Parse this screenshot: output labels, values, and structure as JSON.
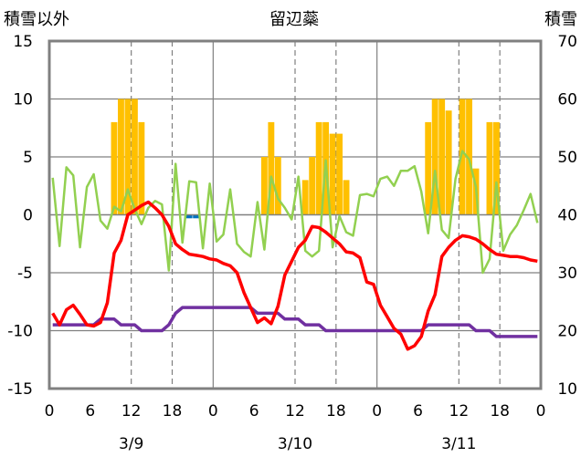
{
  "header": {
    "left_label": "積雪以外",
    "title": "留辺蘂",
    "right_label": "積雪"
  },
  "chart_data": {
    "type": "combo",
    "title": "留辺蘂",
    "left_axis": {
      "label": "積雪以外",
      "min": -15,
      "max": 15,
      "ticks": [
        15,
        10,
        5,
        0,
        -5,
        -10,
        -15
      ]
    },
    "right_axis": {
      "label": "積雪",
      "min": 10,
      "max": 70,
      "ticks": [
        70,
        60,
        50,
        40,
        30,
        20,
        10
      ]
    },
    "x_axis": {
      "min": 0,
      "max": 72,
      "hour_ticks": [
        0,
        6,
        12,
        18,
        0,
        6,
        12,
        18,
        0,
        6,
        12,
        18,
        0
      ],
      "dates": [
        "3/9",
        "3/10",
        "3/11"
      ],
      "date_positions": [
        12,
        36,
        60
      ],
      "day_boundaries": [
        24,
        48
      ],
      "dashed_hours": [
        12,
        18,
        36,
        42,
        60,
        66
      ]
    },
    "colors": {
      "precip": "#FFC000",
      "negative_bar": "#0070C0",
      "temperature": "#FF0000",
      "snow_depth": "#7030A0",
      "wind": "#92D050",
      "frame": "#808080"
    },
    "series": [
      {
        "axis": "left",
        "type": "bar",
        "values": [
          0,
          0,
          0,
          0,
          0,
          0,
          0,
          0,
          0,
          8,
          10,
          10,
          10,
          8,
          0,
          0,
          0,
          0,
          0,
          0,
          -0.3,
          -0.3,
          0,
          0,
          0,
          0,
          0,
          0,
          0,
          0,
          0,
          5,
          8,
          5,
          0,
          0,
          0,
          3,
          5,
          8,
          8,
          7,
          7,
          3,
          0,
          0,
          0,
          0,
          0,
          0,
          0,
          0,
          0,
          0,
          0,
          8,
          10,
          10,
          9,
          0,
          10,
          10,
          4,
          0,
          8,
          8,
          0,
          0,
          0,
          0,
          0,
          0
        ]
      },
      {
        "axis": "left",
        "type": "line",
        "values": [
          -8.5,
          -9.5,
          -8.2,
          -7.8,
          -8.6,
          -9.5,
          -9.6,
          -9.3,
          -7.6,
          -3.3,
          -2.2,
          0,
          0.4,
          0.8,
          1.1,
          0.6,
          0,
          -1,
          -2.5,
          -3,
          -3.4,
          -3.5,
          -3.6,
          -3.8,
          -3.9,
          -4.2,
          -4.4,
          -5,
          -6.7,
          -8,
          -9.3,
          -8.9,
          -9.4,
          -7.9,
          -5.2,
          -4,
          -2.8,
          -2.2,
          -1,
          -1.1,
          -1.5,
          -2,
          -2.5,
          -3.2,
          -3.3,
          -3.7,
          -5.8,
          -6,
          -7.8,
          -8.8,
          -9.8,
          -10.3,
          -11.6,
          -11.3,
          -10.5,
          -8.3,
          -6.9,
          -3.6,
          -2.8,
          -2.2,
          -1.8,
          -1.9,
          -2.1,
          -2.5,
          -3,
          -3.4,
          -3.5,
          -3.6,
          -3.6,
          -3.7,
          -3.9,
          -4
        ]
      },
      {
        "axis": "left",
        "type": "line",
        "values": [
          3.2,
          -2.7,
          4.1,
          3.4,
          -2.8,
          2.4,
          3.5,
          -0.5,
          -1.2,
          0.7,
          0.3,
          2.2,
          0.5,
          -0.8,
          0.6,
          1.2,
          0.9,
          -4.8,
          4.4,
          -2.4,
          2.9,
          2.8,
          -2.9,
          2.7,
          -2.3,
          -1.7,
          2.2,
          -2.5,
          -3.2,
          -3.6,
          1.1,
          -3,
          3.3,
          1.4,
          0.6,
          -0.4,
          3.3,
          -3.1,
          -3.6,
          -3.1,
          4.7,
          -2.8,
          -0.1,
          -1.5,
          -1.8,
          1.7,
          1.8,
          1.6,
          3.1,
          3.3,
          2.5,
          3.8,
          3.8,
          4.2,
          2,
          -1.6,
          3.8,
          -1.3,
          -2,
          3.1,
          5.5,
          4.8,
          2.4,
          -5,
          -3.8,
          2.8,
          -3.1,
          -1.7,
          -0.9,
          0.4,
          1.8,
          -0.7
        ]
      },
      {
        "axis": "right",
        "type": "line",
        "values": [
          21,
          21,
          21,
          21,
          21,
          21,
          21,
          22,
          22,
          22,
          21,
          21,
          21,
          20,
          20,
          20,
          20,
          21,
          23,
          24,
          24,
          24,
          24,
          24,
          24,
          24,
          24,
          24,
          24,
          24,
          23,
          23,
          23,
          23,
          22,
          22,
          22,
          21,
          21,
          21,
          20,
          20,
          20,
          20,
          20,
          20,
          20,
          20,
          20,
          20,
          20,
          20,
          20,
          20,
          20,
          21,
          21,
          21,
          21,
          21,
          21,
          21,
          20,
          20,
          20,
          19,
          19,
          19,
          19,
          19,
          19,
          19
        ]
      }
    ]
  }
}
